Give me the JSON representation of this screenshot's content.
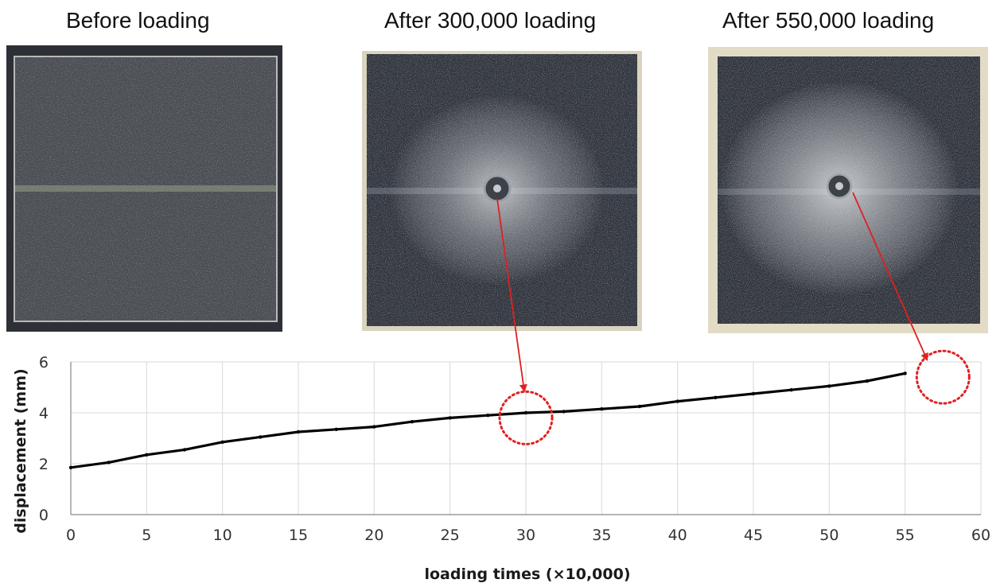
{
  "panels": [
    {
      "title": "Before loading"
    },
    {
      "title": "After 300,000 loading"
    },
    {
      "title": "After 550,000 loading"
    }
  ],
  "chart_data": {
    "type": "line",
    "xlabel": "loading times (×10,000)",
    "ylabel": "displacement (mm)",
    "xlim": [
      0,
      60
    ],
    "ylim": [
      0,
      6
    ],
    "xticks": [
      0,
      5,
      10,
      15,
      20,
      25,
      30,
      35,
      40,
      45,
      50,
      55,
      60
    ],
    "yticks": [
      0,
      2,
      4,
      6
    ],
    "grid": true,
    "series": [
      {
        "x": [
          0,
          2.5,
          5,
          7.5,
          10,
          12.5,
          15,
          17.5,
          20,
          22.5,
          25,
          27.5,
          30,
          32.5,
          35,
          37.5,
          40,
          42.5,
          45,
          47.5,
          50,
          52.5,
          55
        ],
        "values": [
          1.85,
          2.05,
          2.35,
          2.55,
          2.85,
          3.05,
          3.25,
          3.35,
          3.45,
          3.65,
          3.8,
          3.9,
          4.0,
          4.05,
          4.15,
          4.25,
          4.45,
          4.6,
          4.75,
          4.9,
          5.05,
          5.25,
          5.55
        ]
      }
    ],
    "highlights": [
      {
        "x": 30,
        "y": 3.8
      },
      {
        "x": 57.5,
        "y": 5.4
      }
    ]
  },
  "colors": {
    "line": "#000000",
    "grid": "#d9d9d9",
    "axis": "#888888",
    "highlight": "#e02020",
    "photo_base": "#3a3e47"
  }
}
